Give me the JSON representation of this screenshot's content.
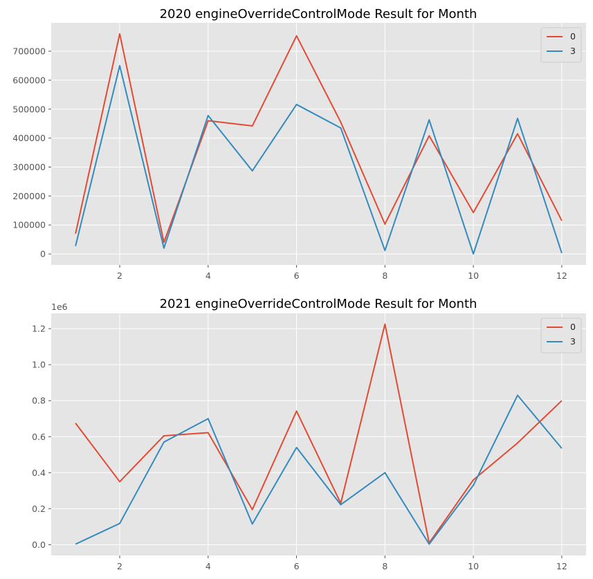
{
  "chart_data": [
    {
      "type": "line",
      "title": "2020 engineOverrideControlMode Result for Month",
      "xlabel": "",
      "ylabel": "",
      "x": [
        1,
        2,
        3,
        4,
        5,
        6,
        7,
        8,
        9,
        10,
        11,
        12
      ],
      "xlim": [
        0.45,
        12.55
      ],
      "ylim": [
        -38000,
        798000
      ],
      "xticks": [
        2,
        4,
        6,
        8,
        10,
        12
      ],
      "xtick_labels": [
        "2",
        "4",
        "6",
        "8",
        "10",
        "12"
      ],
      "yticks": [
        0,
        100000,
        200000,
        300000,
        400000,
        500000,
        600000,
        700000
      ],
      "ytick_labels": [
        "0",
        "100000",
        "200000",
        "300000",
        "400000",
        "500000",
        "600000",
        "700000"
      ],
      "offset_label": "",
      "grid": true,
      "legend_position": "top-right",
      "series": [
        {
          "name": "0",
          "color": "#e24a33",
          "values": [
            70000,
            760000,
            40000,
            460000,
            442000,
            753000,
            455000,
            103000,
            408000,
            143000,
            415000,
            115000
          ]
        },
        {
          "name": "3",
          "color": "#348abd",
          "values": [
            27000,
            650000,
            20000,
            478000,
            287000,
            516000,
            435000,
            12000,
            463000,
            0,
            468000,
            3000
          ]
        }
      ]
    },
    {
      "type": "line",
      "title": "2021 engineOverrideControlMode Result for Month",
      "xlabel": "",
      "ylabel": "",
      "x": [
        1,
        2,
        3,
        4,
        5,
        6,
        7,
        8,
        9,
        10,
        11,
        12
      ],
      "xlim": [
        0.45,
        12.55
      ],
      "ylim": [
        -0.06,
        1.285
      ],
      "xticks": [
        2,
        4,
        6,
        8,
        10,
        12
      ],
      "xtick_labels": [
        "2",
        "4",
        "6",
        "8",
        "10",
        "12"
      ],
      "yticks": [
        0.0,
        0.2,
        0.4,
        0.6,
        0.8,
        1.0,
        1.2
      ],
      "ytick_labels": [
        "0.0",
        "0.2",
        "0.4",
        "0.6",
        "0.8",
        "1.0",
        "1.2"
      ],
      "offset_label": "1e6",
      "grid": true,
      "legend_position": "top-right",
      "series": [
        {
          "name": "0",
          "color": "#e24a33",
          "values": [
            0.675,
            0.35,
            0.605,
            0.622,
            0.195,
            0.742,
            0.23,
            1.225,
            0.01,
            0.36,
            0.565,
            0.8
          ]
        },
        {
          "name": "3",
          "color": "#348abd",
          "values": [
            0.003,
            0.118,
            0.57,
            0.7,
            0.115,
            0.54,
            0.222,
            0.4,
            0.003,
            0.33,
            0.83,
            0.535
          ]
        }
      ]
    }
  ]
}
